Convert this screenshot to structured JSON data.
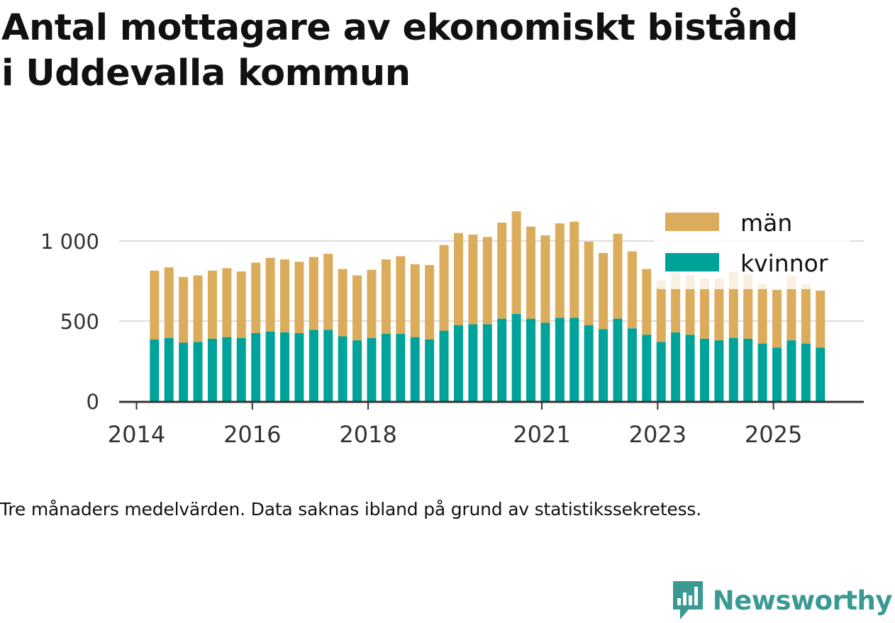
{
  "title": {
    "line1": "Antal mottagare av ekonomiskt bistånd",
    "line2": "i Uddevalla kommun"
  },
  "note": "Tre månaders medelvärden. Data saknas ibland på grund av statistikssekretess.",
  "brand": {
    "name": "Newsworthy",
    "color": "#3a9a93",
    "icon": "newsworthy-logo-icon"
  },
  "chart_data": {
    "type": "bar",
    "stacked": true,
    "ylim": [
      0,
      1250
    ],
    "yticks": [
      {
        "value": 0,
        "label": "0"
      },
      {
        "value": 500,
        "label": "500"
      },
      {
        "value": 1000,
        "label": "1 000"
      }
    ],
    "xdomain": [
      2013.7,
      2026.56
    ],
    "xticks": [
      {
        "value": 2014,
        "label": "2014"
      },
      {
        "value": 2016,
        "label": "2016"
      },
      {
        "value": 2018,
        "label": "2018"
      },
      {
        "value": 2021,
        "label": "2021"
      },
      {
        "value": 2023,
        "label": "2023"
      },
      {
        "value": 2025,
        "label": "2025"
      }
    ],
    "x": [
      2014.31,
      2014.56,
      2014.81,
      2015.06,
      2015.31,
      2015.56,
      2015.81,
      2016.06,
      2016.31,
      2016.56,
      2016.81,
      2017.06,
      2017.31,
      2017.56,
      2017.81,
      2018.06,
      2018.31,
      2018.56,
      2018.81,
      2019.06,
      2019.31,
      2019.56,
      2019.81,
      2020.06,
      2020.31,
      2020.56,
      2020.81,
      2021.06,
      2021.31,
      2021.56,
      2021.81,
      2022.06,
      2022.31,
      2022.56,
      2022.81,
      2023.06,
      2023.31,
      2023.56,
      2023.81,
      2024.06,
      2024.31,
      2024.56,
      2024.81,
      2025.06,
      2025.31,
      2025.56,
      2025.81
    ],
    "series": [
      {
        "name": "kvinnor",
        "color": "#00a39a",
        "values": [
          385,
          395,
          365,
          370,
          390,
          400,
          395,
          425,
          435,
          430,
          425,
          445,
          445,
          405,
          380,
          395,
          420,
          420,
          400,
          385,
          440,
          475,
          480,
          480,
          515,
          545,
          515,
          490,
          520,
          520,
          475,
          450,
          515,
          455,
          415,
          370,
          430,
          415,
          390,
          380,
          395,
          390,
          360,
          335,
          380,
          360,
          335
        ]
      },
      {
        "name": "män",
        "color": "#dbac5c",
        "values": [
          430,
          440,
          410,
          415,
          425,
          430,
          415,
          440,
          460,
          455,
          445,
          455,
          475,
          420,
          405,
          425,
          465,
          485,
          455,
          465,
          535,
          575,
          560,
          545,
          600,
          640,
          575,
          545,
          590,
          600,
          520,
          475,
          530,
          480,
          410,
          385,
          370,
          375,
          375,
          385,
          410,
          400,
          375,
          360,
          405,
          370,
          355
        ]
      }
    ],
    "legend": {
      "position": "top-right",
      "entries": [
        "män",
        "kvinnor"
      ]
    }
  }
}
